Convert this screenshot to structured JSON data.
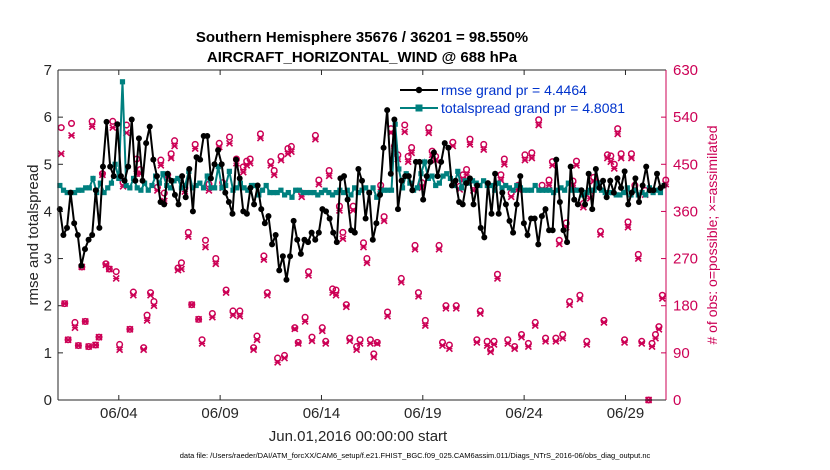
{
  "figure": {
    "title_line1": "Southern Hemisphere 35676 / 36201 = 98.550%",
    "title_line2": "AIRCRAFT_HORIZONTAL_WIND @ 688 hPa",
    "xlabel": "Jun.01,2016 00:00:00 start",
    "ylabel_left": "rmse and totalspread",
    "ylabel_right": "# of obs: o=possible; ×=assimilated",
    "footer": "data file: /Users/raeder/DAI/ATM_forcXX/CAM6_setup/f.e21.FHIST_BGC.f09_025.CAM6assim.011/Diags_NTrS_2016-06/obs_diag_output.nc",
    "colors": {
      "rmse": "#000000",
      "spread": "#00807f",
      "obs": "#cc0055",
      "legend_text": "#0033cc"
    }
  },
  "chart_data": {
    "type": "line",
    "x_unit": "days since 2016-06-01 00:00",
    "xlim": [
      0,
      30
    ],
    "ylim_left": [
      0,
      7
    ],
    "ylim_right": [
      0,
      630
    ],
    "x_ticks": [
      {
        "value": 3,
        "label": "06/04"
      },
      {
        "value": 8,
        "label": "06/09"
      },
      {
        "value": 13,
        "label": "06/14"
      },
      {
        "value": 18,
        "label": "06/19"
      },
      {
        "value": 23,
        "label": "06/24"
      },
      {
        "value": 28,
        "label": "06/29"
      }
    ],
    "y_ticks_left": [
      "0",
      "1",
      "2",
      "3",
      "4",
      "5",
      "6",
      "7"
    ],
    "y_ticks_right": [
      "0",
      "90",
      "180",
      "270",
      "360",
      "450",
      "540",
      "630"
    ],
    "series": [
      {
        "name": "rmse",
        "legend": "rmse grand pr = 4.4464",
        "values": [
          4.05,
          3.5,
          3.65,
          4.4,
          3.75,
          3.5,
          2.85,
          3.2,
          3.4,
          3.5,
          4.45,
          3.65,
          4.95,
          5.9,
          4.95,
          4.75,
          5.85,
          4.75,
          4.65,
          4.95,
          5.95,
          4.65,
          5.55,
          4.65,
          5.45,
          5.8,
          5.1,
          4.75,
          4.2,
          4.15,
          4.8,
          4.65,
          4.35,
          4.15,
          4.75,
          4.3,
          4.9,
          4.0,
          5.15,
          5.1,
          5.6,
          5.6,
          4.7,
          5.0,
          5.3,
          5.0,
          4.4,
          4.2,
          3.95,
          5.1,
          4.7,
          4.0,
          3.95,
          4.5,
          4.15,
          4.55,
          4.05,
          3.75,
          3.9,
          3.3,
          3.5,
          2.75,
          3.05,
          2.55,
          3.05,
          3.8,
          3.4,
          3.1,
          3.4,
          3.35,
          3.55,
          3.4,
          3.55,
          4.05,
          4.0,
          3.85,
          3.55,
          3.35,
          4.7,
          4.75,
          4.25,
          3.6,
          3.55,
          4.9,
          4.65,
          3.85,
          4.4,
          3.4,
          3.75,
          4.35,
          5.35,
          6.15,
          4.8,
          5.95,
          4.05,
          4.65,
          4.75,
          4.75,
          4.45,
          5.05,
          5.05,
          4.25,
          4.75,
          5.05,
          5.25,
          4.75,
          5.05,
          5.45,
          5.35,
          4.55,
          4.65,
          4.2,
          4.15,
          4.6,
          4.7,
          4.15,
          4.55,
          3.65,
          3.45,
          4.6,
          3.95,
          4.8,
          3.95,
          4.4,
          4.15,
          3.8,
          3.55,
          4.15,
          4.75,
          3.75,
          3.5,
          3.85,
          3.85,
          3.3,
          3.9,
          4.05,
          3.6,
          3.6,
          5.1,
          4.2,
          3.6,
          3.35,
          4.95,
          4.25,
          4.15,
          4.45,
          4.15,
          4.8,
          4.05,
          4.9,
          4.5,
          4.65,
          4.3,
          4.65,
          4.4,
          4.7,
          4.5,
          4.85,
          4.15,
          4.4,
          4.7,
          4.2,
          4.55,
          4.95,
          4.45,
          4.45,
          4.8,
          4.5,
          4.55
        ]
      },
      {
        "name": "totalspread",
        "legend": "totalspread grand pr = 4.8081",
        "values": [
          4.55,
          4.45,
          4.4,
          4.4,
          4.4,
          4.45,
          4.45,
          4.5,
          4.5,
          4.7,
          4.4,
          4.6,
          4.4,
          4.5,
          4.6,
          5.0,
          4.7,
          6.75,
          4.55,
          4.5,
          4.7,
          4.5,
          4.45,
          4.6,
          4.45,
          4.55,
          4.75,
          4.6,
          4.8,
          4.55,
          4.5,
          4.65,
          4.7,
          4.5,
          4.55,
          4.85,
          4.5,
          4.55,
          4.6,
          4.5,
          4.75,
          4.5,
          4.5,
          4.95,
          4.5,
          4.55,
          4.85,
          4.45,
          4.5,
          4.6,
          4.5,
          4.45,
          4.55,
          4.55,
          4.35,
          4.45,
          4.55,
          4.4,
          4.4,
          4.4,
          4.45,
          4.35,
          4.4,
          4.3,
          4.45,
          4.45,
          4.4,
          4.4,
          4.4,
          4.4,
          4.35,
          4.4,
          4.45,
          4.4,
          4.35,
          4.4,
          4.45,
          4.4,
          4.45,
          4.35,
          4.5,
          4.4,
          4.45,
          4.5,
          4.4,
          4.5,
          4.3,
          4.4,
          4.45,
          4.45,
          4.45,
          5.85,
          4.9,
          4.5,
          4.8,
          4.6,
          4.45,
          4.5,
          4.8,
          5.05,
          4.7,
          4.75,
          4.55,
          4.6,
          4.75,
          4.8,
          4.7,
          4.55,
          4.85,
          4.5,
          4.65,
          4.6,
          4.65,
          4.6,
          4.55,
          4.65,
          4.55,
          4.55,
          4.45,
          4.6,
          4.5,
          4.55,
          4.5,
          4.45,
          4.55,
          4.5,
          4.45,
          4.45,
          4.45,
          4.55,
          4.45,
          4.45,
          4.45,
          4.45,
          4.4,
          4.45,
          4.5,
          4.45,
          4.6,
          4.45,
          4.45,
          4.45,
          4.35,
          4.4,
          4.45,
          4.45,
          4.6,
          4.45,
          4.4,
          4.4,
          4.4,
          4.35,
          4.35,
          4.4,
          4.5,
          4.35,
          4.45,
          4.35,
          4.4,
          4.35,
          4.5,
          4.4,
          4.45,
          4.4,
          4.55
        ]
      },
      {
        "name": "possible",
        "marker": "o",
        "axis": "right",
        "values": [
          520,
          184,
          115,
          528,
          148,
          104,
          254,
          150,
          102,
          532,
          105,
          120,
          432,
          260,
          250,
          532,
          245,
          106,
          416,
          525,
          135,
          206,
          460,
          440,
          100,
          162,
          205,
          188,
          406,
          458,
          395,
          430,
          470,
          495,
          252,
          262,
          405,
          320,
          182,
          488,
          154,
          115,
          305,
          412,
          165,
          270,
          490,
          415,
          210,
          502,
          170,
          460,
          170,
          445,
          456,
          460,
          100,
          122,
          508,
          275,
          205,
          455,
          438,
          80,
          465,
          85,
          480,
          484,
          138,
          110,
          395,
          158,
          245,
          120,
          505,
          420,
          138,
          112,
          438,
          212,
          210,
          370,
          320,
          182,
          118,
          370,
          102,
          115,
          300,
          270,
          115,
          88,
          110,
          410,
          350,
          168,
          518,
          485,
          468,
          232,
          525,
          465,
          482,
          295,
          205,
          415,
          152,
          520,
          475,
          465,
          295,
          110,
          180,
          105,
          492,
          180,
          408,
          430,
          440,
          498,
          410,
          115,
          170,
          488,
          112,
          96,
          112,
          240,
          430,
          460,
          115,
          395,
          102,
          410,
          125,
          468,
          108,
          472,
          148,
          535,
          410,
          118,
          420,
          455,
          118,
          305,
          125,
          338,
          188,
          418,
          456,
          200,
          375,
          112,
          392,
          425,
          415,
          322,
          152,
          468,
          466,
          450,
          518,
          470,
          115,
          340,
          470,
          410,
          278,
          112,
          400,
          0,
          108,
          125,
          140,
          200,
          420
        ]
      },
      {
        "name": "assimilated",
        "marker": "x",
        "axis": "right",
        "values": [
          470,
          184,
          115,
          505,
          138,
          104,
          254,
          150,
          102,
          522,
          105,
          120,
          430,
          258,
          250,
          520,
          232,
          96,
          408,
          510,
          135,
          200,
          432,
          432,
          96,
          152,
          200,
          180,
          400,
          448,
          380,
          425,
          462,
          485,
          248,
          250,
          398,
          312,
          182,
          480,
          154,
          108,
          292,
          400,
          158,
          260,
          483,
          405,
          205,
          490,
          162,
          452,
          160,
          435,
          448,
          452,
          96,
          115,
          500,
          268,
          200,
          448,
          430,
          72,
          458,
          80,
          470,
          474,
          136,
          108,
          388,
          150,
          238,
          113,
          498,
          412,
          132,
          108,
          428,
          205,
          200,
          362,
          308,
          178,
          113,
          362,
          96,
          108,
          292,
          262,
          108,
          82,
          108,
          402,
          342,
          160,
          510,
          475,
          460,
          225,
          512,
          455,
          472,
          288,
          198,
          405,
          142,
          510,
          468,
          458,
          288,
          104,
          175,
          98,
          485,
          175,
          402,
          420,
          430,
          488,
          400,
          110,
          165,
          478,
          104,
          92,
          106,
          232,
          420,
          450,
          108,
          388,
          98,
          402,
          120,
          458,
          102,
          462,
          142,
          525,
          402,
          112,
          410,
          448,
          112,
          298,
          118,
          330,
          182,
          410,
          448,
          193,
          368,
          106,
          385,
          418,
          408,
          316,
          148,
          462,
          455,
          442,
          508,
          462,
          110,
          330,
          462,
          402,
          270,
          108,
          392,
          0,
          102,
          118,
          135,
          194,
          412
        ]
      }
    ]
  }
}
